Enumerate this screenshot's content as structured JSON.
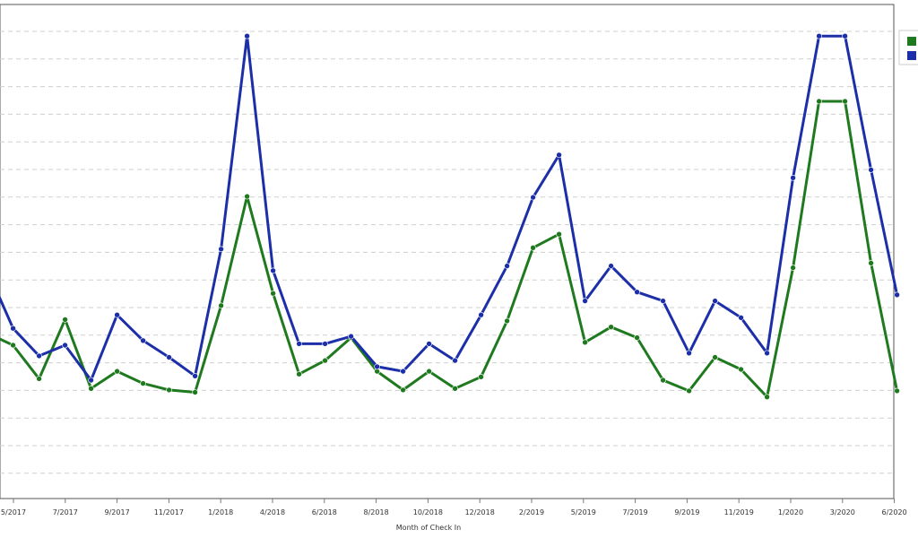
{
  "chart_data": {
    "type": "line",
    "title": "",
    "xlabel": "Month of Check In",
    "ylabel": "",
    "x_tick_labels": [
      "5/2017",
      "7/2017",
      "9/2017",
      "11/2017",
      "1/2018",
      "4/2018",
      "6/2018",
      "8/2018",
      "10/2018",
      "12/2018",
      "2/2019",
      "5/2019",
      "7/2019",
      "9/2019",
      "11/2019",
      "1/2020",
      "3/2020",
      "6/2020"
    ],
    "grid": "horizontal-dashed",
    "legend": {
      "placement": "top-right"
    },
    "ylim": [
      0,
      100
    ],
    "series": [
      {
        "color": "#1f7a1f",
        "values": [
          35.3,
          32.7,
          25.5,
          38.2,
          23.4,
          27.1,
          24.5,
          23.1,
          22.6,
          41.2,
          64.6,
          43.8,
          26.5,
          29.4,
          34.3,
          27.1,
          23.1,
          27.1,
          23.4,
          25.9,
          37.9,
          53.6,
          56.5,
          33.3,
          36.6,
          34.3,
          25.2,
          22.9,
          30.1,
          27.5,
          21.6,
          49.3,
          85.0,
          85.0,
          50.3,
          22.9
        ]
      },
      {
        "color": "#1c2fa8",
        "values": [
          49.0,
          36.3,
          30.4,
          32.7,
          25.2,
          39.2,
          33.7,
          30.1,
          26.1,
          53.3,
          99.0,
          48.7,
          33.0,
          33.0,
          34.6,
          28.1,
          27.1,
          33.0,
          29.4,
          39.2,
          49.7,
          64.4,
          73.5,
          42.2,
          49.7,
          44.1,
          42.2,
          31.0,
          42.2,
          38.6,
          31.0,
          68.6,
          99.0,
          99.0,
          70.3,
          43.5
        ]
      }
    ]
  },
  "legend_items": [
    {
      "color": "#1f7a1f"
    },
    {
      "color": "#1c2fa8"
    }
  ]
}
